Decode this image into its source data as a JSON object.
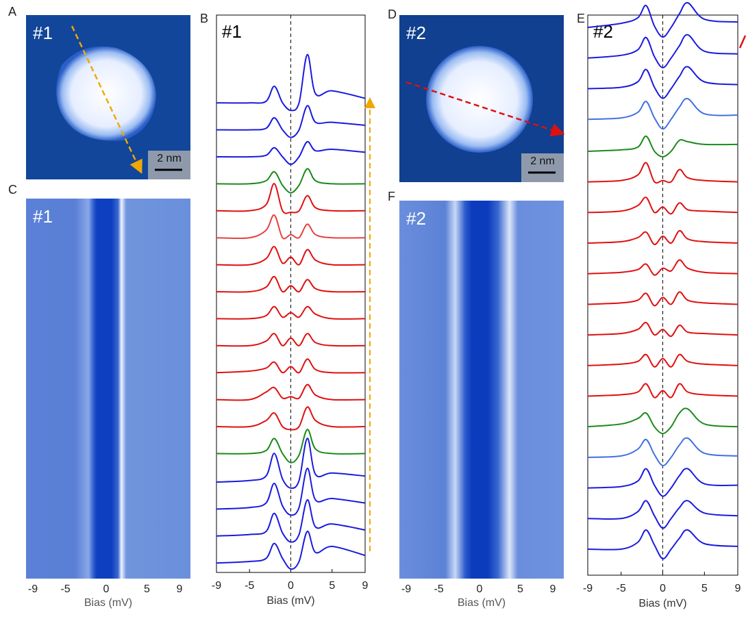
{
  "images": [
    {
      "label": "A",
      "tag": "#1",
      "scale_bar": "2 nm"
    },
    {
      "label": "C",
      "tag": "#1",
      "xlim": [
        -9,
        9
      ],
      "xticks": [
        -9,
        -5,
        0,
        5,
        9
      ],
      "xlabel": "Bias (mV)"
    },
    {
      "label": "D",
      "tag": "#2",
      "scale_bar": "2 nm"
    },
    {
      "label": "F",
      "tag": "#2",
      "xlim": [
        -9,
        9
      ],
      "xticks": [
        -9,
        -5,
        0,
        5,
        9
      ],
      "xlabel": "Bias (mV)"
    }
  ],
  "chart_data": [
    {
      "type": "line",
      "label": "B",
      "title": "#1",
      "x": [
        -9,
        -5,
        -3,
        -2,
        -1,
        0,
        1,
        2,
        3,
        5,
        9
      ],
      "xlim": [
        -9,
        9
      ],
      "xticks": [
        -9,
        -5,
        0,
        5,
        9
      ],
      "xlabel": "Bias (mV)",
      "series": [
        {
          "color": "#1a1adf",
          "values": [
            0.9,
            1.0,
            1.2,
            2.2,
            1.2,
            0.5,
            1.0,
            3.0,
            1.6,
            2.0,
            1.4
          ]
        },
        {
          "color": "#1a1adf",
          "values": [
            0.9,
            1.0,
            1.2,
            2.4,
            1.1,
            0.5,
            1.0,
            3.3,
            1.5,
            1.7,
            1.3
          ]
        },
        {
          "color": "#1a1adf",
          "values": [
            0.9,
            1.0,
            1.3,
            2.6,
            1.1,
            0.5,
            1.0,
            3.6,
            1.5,
            1.6,
            1.3
          ]
        },
        {
          "color": "#1a1adf",
          "values": [
            0.9,
            1.0,
            1.3,
            2.8,
            1.1,
            0.5,
            1.0,
            3.8,
            1.4,
            1.5,
            1.3
          ]
        },
        {
          "color": "#1a8a1a",
          "values": [
            1.0,
            1.0,
            1.2,
            2.0,
            1.0,
            0.4,
            0.9,
            2.6,
            1.3,
            1.0,
            1.0
          ]
        },
        {
          "color": "#e01010",
          "values": [
            1.0,
            1.0,
            1.4,
            1.9,
            1.0,
            0.8,
            1.0,
            2.3,
            1.4,
            1.0,
            1.0
          ]
        },
        {
          "color": "#e01010",
          "values": [
            1.0,
            1.0,
            1.5,
            1.8,
            1.1,
            1.2,
            1.1,
            2.0,
            1.3,
            1.0,
            1.0
          ]
        },
        {
          "color": "#e01010",
          "values": [
            1.0,
            1.1,
            1.3,
            1.7,
            1.0,
            1.4,
            1.0,
            1.9,
            1.2,
            1.0,
            1.0
          ]
        },
        {
          "color": "#e01010",
          "values": [
            1.0,
            1.0,
            1.3,
            1.8,
            1.0,
            1.5,
            1.0,
            1.8,
            1.2,
            1.0,
            1.0
          ]
        },
        {
          "color": "#e01010",
          "values": [
            1.0,
            1.0,
            1.2,
            1.8,
            1.1,
            1.4,
            1.1,
            1.8,
            1.3,
            1.0,
            1.0
          ]
        },
        {
          "color": "#e01010",
          "values": [
            1.0,
            1.0,
            1.3,
            2.0,
            1.0,
            1.4,
            1.0,
            1.8,
            1.2,
            1.0,
            1.0
          ]
        },
        {
          "color": "#e01010",
          "values": [
            1.0,
            1.0,
            1.4,
            2.2,
            1.1,
            1.5,
            1.0,
            2.0,
            1.3,
            1.0,
            1.0
          ]
        },
        {
          "color": "#e84040",
          "values": [
            1.0,
            1.0,
            1.5,
            2.5,
            1.0,
            1.2,
            1.0,
            1.9,
            1.2,
            1.0,
            1.0
          ]
        },
        {
          "color": "#e01010",
          "values": [
            1.0,
            1.0,
            1.4,
            2.8,
            1.0,
            0.9,
            1.0,
            2.0,
            1.2,
            1.0,
            1.0
          ]
        },
        {
          "color": "#1a8a1a",
          "values": [
            1.0,
            1.0,
            1.2,
            1.8,
            0.9,
            0.4,
            0.9,
            2.0,
            1.2,
            1.0,
            1.0
          ]
        },
        {
          "color": "#1a1adf",
          "values": [
            1.0,
            1.0,
            1.1,
            1.6,
            1.0,
            0.5,
            1.0,
            2.0,
            1.4,
            1.5,
            1.3
          ]
        },
        {
          "color": "#1a1adf",
          "values": [
            1.0,
            1.0,
            1.1,
            1.8,
            1.0,
            0.5,
            1.0,
            2.6,
            1.5,
            1.5,
            1.3
          ]
        },
        {
          "color": "#1a1adf",
          "values": [
            1.0,
            1.0,
            1.1,
            2.1,
            1.0,
            0.5,
            1.0,
            4.2,
            1.6,
            1.8,
            1.3
          ]
        }
      ]
    },
    {
      "type": "line",
      "label": "E",
      "title": "#2",
      "x": [
        -9,
        -5,
        -3,
        -2,
        -1,
        0,
        1,
        2,
        3,
        5,
        9
      ],
      "xlim": [
        -9,
        9
      ],
      "xticks": [
        -9,
        -5,
        0,
        5,
        9
      ],
      "xlabel": "Bias (mV)",
      "series": [
        {
          "color": "#1a1adf",
          "values": [
            1.0,
            1.0,
            1.5,
            2.4,
            1.3,
            0.3,
            1.0,
            1.8,
            2.4,
            1.4,
            1.2
          ]
        },
        {
          "color": "#1a1adf",
          "values": [
            1.0,
            1.0,
            1.5,
            2.3,
            1.2,
            0.3,
            1.0,
            1.8,
            2.3,
            1.4,
            1.2
          ]
        },
        {
          "color": "#1a1adf",
          "values": [
            1.0,
            1.1,
            1.5,
            2.4,
            1.2,
            0.4,
            1.0,
            1.9,
            2.4,
            1.3,
            1.2
          ]
        },
        {
          "color": "#4070e0",
          "values": [
            1.0,
            1.1,
            1.6,
            2.3,
            1.2,
            0.4,
            1.0,
            1.9,
            2.4,
            1.3,
            1.1
          ]
        },
        {
          "color": "#1a8a1a",
          "values": [
            1.0,
            1.2,
            1.6,
            2.0,
            1.0,
            0.5,
            1.0,
            2.0,
            2.3,
            1.2,
            1.0
          ]
        },
        {
          "color": "#e01010",
          "values": [
            1.0,
            1.1,
            1.3,
            1.9,
            0.9,
            1.4,
            0.9,
            1.9,
            1.3,
            1.1,
            1.0
          ]
        },
        {
          "color": "#e01010",
          "values": [
            1.0,
            1.1,
            1.3,
            1.8,
            0.9,
            1.5,
            0.9,
            1.8,
            1.3,
            1.1,
            1.0
          ]
        },
        {
          "color": "#e01010",
          "values": [
            1.0,
            1.1,
            1.4,
            1.9,
            1.0,
            1.4,
            0.9,
            1.7,
            1.2,
            1.1,
            1.0
          ]
        },
        {
          "color": "#e01010",
          "values": [
            1.0,
            1.1,
            1.3,
            1.8,
            0.9,
            1.5,
            1.0,
            1.9,
            1.3,
            1.1,
            1.0
          ]
        },
        {
          "color": "#e01010",
          "values": [
            1.0,
            1.1,
            1.3,
            1.7,
            0.9,
            1.4,
            1.2,
            2.0,
            1.4,
            1.1,
            1.0
          ]
        },
        {
          "color": "#e01010",
          "values": [
            1.0,
            1.1,
            1.4,
            1.8,
            0.9,
            1.5,
            1.0,
            1.9,
            1.3,
            1.1,
            1.0
          ]
        },
        {
          "color": "#e01010",
          "values": [
            1.0,
            1.1,
            1.5,
            2.1,
            1.0,
            1.4,
            0.9,
            1.7,
            1.2,
            1.1,
            1.0
          ]
        },
        {
          "color": "#e01010",
          "values": [
            1.0,
            1.1,
            1.5,
            2.4,
            1.0,
            1.1,
            1.0,
            1.9,
            1.3,
            1.1,
            1.0
          ]
        },
        {
          "color": "#1a8a1a",
          "values": [
            1.0,
            1.1,
            1.3,
            2.1,
            1.0,
            0.6,
            1.0,
            1.8,
            1.7,
            1.5,
            1.5
          ]
        },
        {
          "color": "#4070e0",
          "values": [
            1.1,
            1.2,
            1.6,
            2.4,
            1.2,
            0.4,
            1.1,
            2.0,
            2.6,
            1.5,
            1.4
          ]
        },
        {
          "color": "#1a1adf",
          "values": [
            1.1,
            1.2,
            1.6,
            2.5,
            1.2,
            0.4,
            1.1,
            2.0,
            2.7,
            1.6,
            1.4
          ]
        },
        {
          "color": "#1a1adf",
          "values": [
            1.1,
            1.3,
            1.7,
            2.6,
            1.2,
            0.4,
            1.1,
            2.0,
            2.8,
            1.6,
            1.4
          ]
        },
        {
          "color": "#1a1adf",
          "values": [
            1.1,
            1.4,
            1.8,
            2.7,
            1.2,
            0.4,
            1.1,
            2.1,
            2.9,
            1.7,
            1.5
          ]
        }
      ]
    }
  ]
}
